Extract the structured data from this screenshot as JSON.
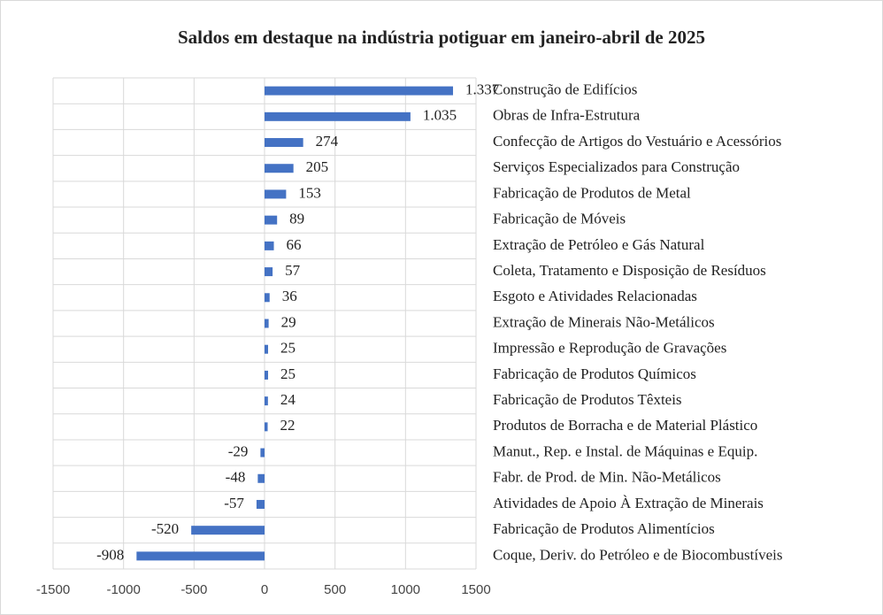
{
  "chart_data": {
    "type": "bar",
    "orientation": "horizontal",
    "title": "Saldos em destaque na indústria potiguar em janeiro-abril de 2025",
    "categories": [
      "Construção de Edifícios",
      "Obras de Infra-Estrutura",
      "Confecção de Artigos do Vestuário e Acessórios",
      "Serviços Especializados para Construção",
      "Fabricação de Produtos de Metal",
      "Fabricação de Móveis",
      "Extração de Petróleo e Gás Natural",
      "Coleta, Tratamento e Disposição de Resíduos",
      "Esgoto e Atividades Relacionadas",
      "Extração de Minerais Não-Metálicos",
      "Impressão e Reprodução de Gravações",
      "Fabricação de Produtos Químicos",
      "Fabricação de Produtos Têxteis",
      "Produtos de Borracha e de Material Plástico",
      "Manut., Rep. e Instal. de Máquinas e Equip.",
      "Fabr. de Prod. de Min. Não-Metálicos",
      "Atividades de Apoio À Extração de Minerais",
      "Fabricação de Produtos Alimentícios",
      "Coque, Deriv. do Petróleo e de Biocombustíveis"
    ],
    "values": [
      1337,
      1035,
      274,
      205,
      153,
      89,
      66,
      57,
      36,
      29,
      25,
      25,
      24,
      22,
      -29,
      -48,
      -57,
      -520,
      -908
    ],
    "value_labels": [
      "1.337",
      "1.035",
      "274",
      "205",
      "153",
      "89",
      "66",
      "57",
      "36",
      "29",
      "25",
      "25",
      "24",
      "22",
      "-29",
      "-48",
      "-57",
      "-520",
      "-908"
    ],
    "color": "#4472c4",
    "xlim": [
      -1500,
      1500
    ],
    "xticks": [
      -1500,
      -1000,
      -500,
      0,
      500,
      1000,
      1500
    ],
    "grid": true
  }
}
